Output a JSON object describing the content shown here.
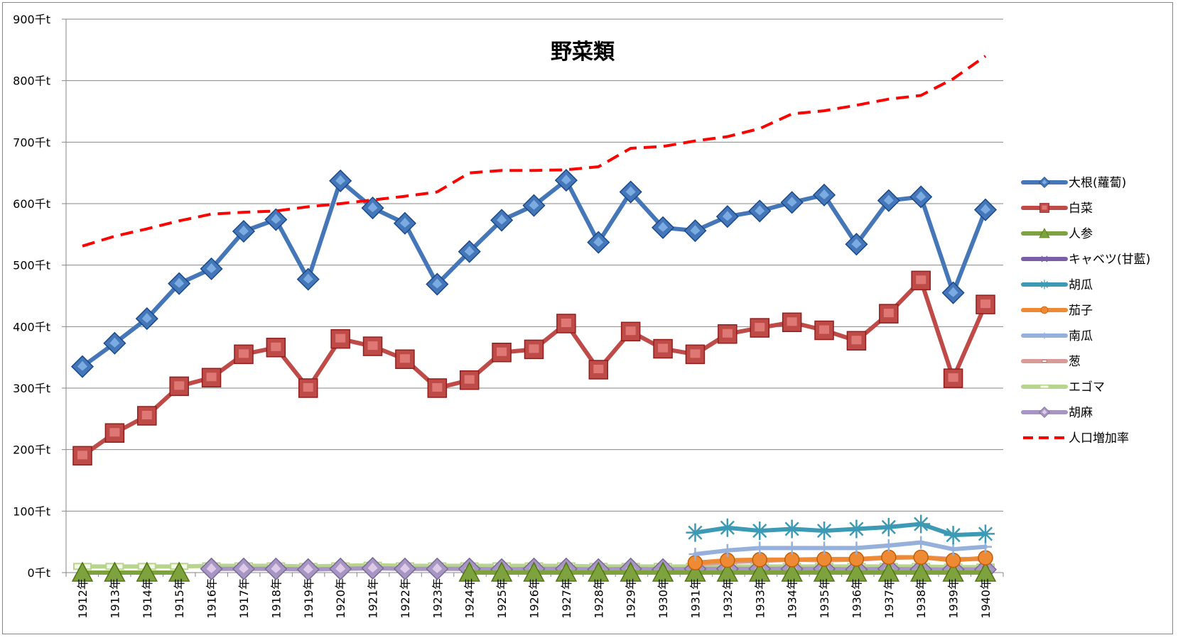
{
  "chart_data": {
    "type": "line",
    "title": "野菜類",
    "xlabel": "",
    "ylabel": "",
    "ylim": [
      0,
      900
    ],
    "y_ticks": [
      0,
      100,
      200,
      300,
      400,
      500,
      600,
      700,
      800,
      900
    ],
    "y_unit": "千t",
    "grid": "horizontal",
    "legend_position": "right",
    "categories": [
      "1912年",
      "1913年",
      "1914年",
      "1915年",
      "1916年",
      "1917年",
      "1918年",
      "1919年",
      "1920年",
      "1921年",
      "1922年",
      "1923年",
      "1924年",
      "1925年",
      "1926年",
      "1927年",
      "1928年",
      "1929年",
      "1930年",
      "1931年",
      "1932年",
      "1933年",
      "1934年",
      "1935年",
      "1936年",
      "1937年",
      "1938年",
      "1939年",
      "1940年"
    ],
    "series": [
      {
        "name": "大根(蘿蔔)",
        "color": "#4577b8",
        "marker": "diamond",
        "values": [
          335,
          373,
          413,
          470,
          494,
          555,
          574,
          477,
          637,
          593,
          568,
          469,
          522,
          573,
          597,
          638,
          537,
          619,
          561,
          556,
          579,
          588,
          602,
          614,
          534,
          605,
          611,
          455,
          590
        ]
      },
      {
        "name": "白菜",
        "color": "#be4b48",
        "marker": "square",
        "values": [
          190,
          227,
          255,
          303,
          317,
          355,
          366,
          300,
          380,
          368,
          347,
          300,
          313,
          358,
          363,
          405,
          330,
          392,
          364,
          355,
          388,
          398,
          407,
          394,
          377,
          421,
          475,
          316,
          436
        ]
      },
      {
        "name": "人参",
        "color": "#7ea23e",
        "marker": "triangle",
        "values": [
          0,
          0,
          0,
          0,
          null,
          null,
          null,
          null,
          null,
          null,
          null,
          null,
          0,
          0,
          0,
          0,
          0,
          0,
          0,
          0,
          0,
          0,
          0,
          0,
          0,
          0,
          0,
          0,
          0
        ]
      },
      {
        "name": "キャベツ(甘藍)",
        "color": "#7b5ea6",
        "marker": "x",
        "values": [
          null,
          null,
          null,
          null,
          null,
          null,
          null,
          null,
          null,
          null,
          null,
          null,
          null,
          null,
          null,
          null,
          null,
          null,
          null,
          null,
          null,
          null,
          null,
          null,
          null,
          null,
          null,
          null,
          null
        ]
      },
      {
        "name": "胡瓜",
        "color": "#3d9ab5",
        "marker": "star",
        "values": [
          null,
          null,
          null,
          null,
          null,
          null,
          null,
          null,
          null,
          null,
          null,
          null,
          null,
          null,
          null,
          null,
          null,
          null,
          null,
          65,
          73,
          68,
          71,
          68,
          71,
          74,
          79,
          61,
          63
        ]
      },
      {
        "name": "茄子",
        "color": "#ee8a33",
        "marker": "circle",
        "values": [
          null,
          null,
          null,
          null,
          null,
          null,
          null,
          null,
          null,
          null,
          null,
          null,
          null,
          null,
          null,
          null,
          null,
          null,
          null,
          16,
          20,
          21,
          21,
          22,
          22,
          25,
          25,
          20,
          24
        ]
      },
      {
        "name": "南瓜",
        "color": "#95b0db",
        "marker": "plus",
        "values": [
          null,
          null,
          null,
          null,
          null,
          null,
          null,
          null,
          null,
          null,
          null,
          null,
          null,
          null,
          null,
          null,
          null,
          null,
          null,
          30,
          36,
          40,
          40,
          40,
          40,
          44,
          49,
          38,
          42
        ]
      },
      {
        "name": "葱",
        "color": "#d89b97",
        "marker": "dash",
        "values": [
          null,
          null,
          null,
          null,
          null,
          null,
          null,
          null,
          null,
          null,
          null,
          null,
          null,
          null,
          null,
          null,
          null,
          null,
          null,
          14,
          17,
          19,
          21,
          20,
          21,
          24,
          25,
          22,
          22
        ]
      },
      {
        "name": "エゴマ",
        "color": "#b7d58c",
        "marker": "rect",
        "values": [
          10,
          10,
          10,
          10,
          11,
          11,
          11,
          10,
          11,
          12,
          11,
          11,
          11,
          11,
          11,
          11,
          10,
          10,
          10,
          10,
          10,
          10,
          10,
          10,
          10,
          10,
          10,
          9,
          9
        ]
      },
      {
        "name": "胡麻",
        "color": "#a795c3",
        "marker": "diamond",
        "values": [
          null,
          null,
          null,
          null,
          6,
          6,
          6,
          5,
          6,
          7,
          6,
          6,
          6,
          5,
          6,
          6,
          5,
          6,
          5,
          6,
          6,
          6,
          6,
          6,
          5,
          6,
          5,
          5,
          5
        ]
      },
      {
        "name": "人口増加率",
        "color": "#ff0000",
        "marker": "none",
        "dashed": true,
        "values": [
          531,
          547,
          559,
          572,
          583,
          586,
          588,
          595,
          600,
          606,
          612,
          619,
          650,
          654,
          654,
          655,
          660,
          690,
          693,
          702,
          709,
          722,
          746,
          751,
          760,
          770,
          776,
          803,
          840
        ]
      }
    ]
  }
}
